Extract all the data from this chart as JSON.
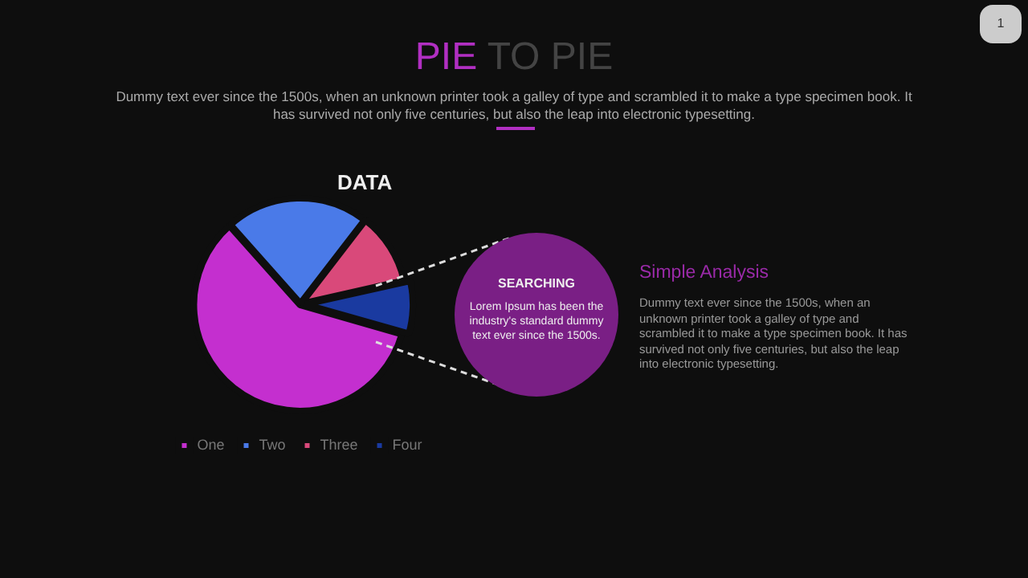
{
  "chart_data": {
    "type": "pie",
    "title": "PIE TO PIE",
    "subtitle": "Dummy text ever since the 1500s, when an unknown printer took a galley of type and scrambled it to make a type specimen book. It has survived not only five centuries, but also the leap into electronic typesetting.",
    "categories": [
      "One",
      "Two",
      "Three",
      "Four"
    ],
    "values": [
      59,
      22,
      11,
      8
    ],
    "colors": [
      "#c42fcf",
      "#4a7ae8",
      "#d9497a",
      "#1a3aa0"
    ],
    "legend": "bottom",
    "annotations": [
      "DATA",
      "SEARCHING",
      "Lorem Ipsum has been the industry's standard dummy text ever since the 1500s.",
      "Simple Analysis",
      "Dummy text ever since the 1500s, when an unknown printer took a galley of type and scrambled it to make a type specimen book. It has survived not only five centuries, but also the leap into electronic typesetting.",
      "1"
    ]
  }
}
